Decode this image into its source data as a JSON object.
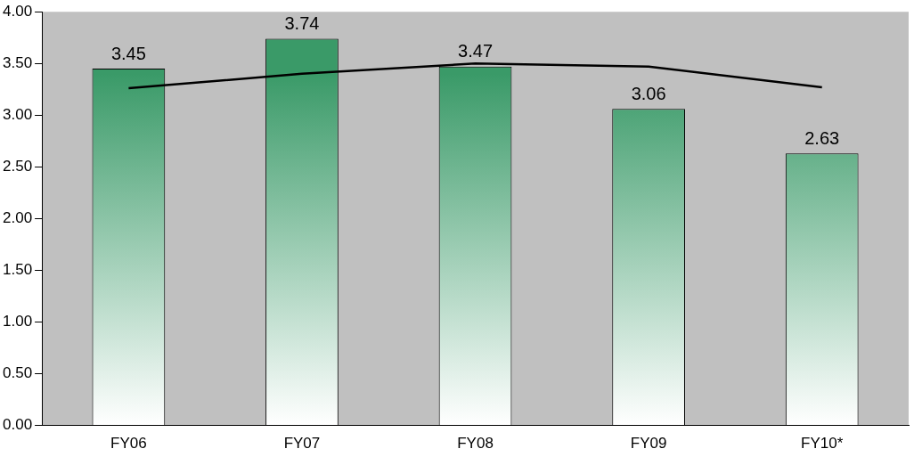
{
  "chart_data": {
    "type": "bar",
    "categories": [
      "FY06",
      "FY07",
      "FY08",
      "FY09",
      "FY10*"
    ],
    "series": [
      {
        "color": "#3a9a68",
        "values": [
          3.45,
          3.74,
          3.47,
          3.06,
          2.63
        ],
        "value_labels": [
          "3.45",
          "3.74",
          "3.47",
          "3.06",
          "2.63"
        ]
      },
      {
        "type": "line",
        "color": "#000000",
        "values": [
          3.26,
          3.4,
          3.5,
          3.47,
          3.27
        ]
      }
    ],
    "ylim": [
      0,
      4
    ],
    "yticks": [
      {
        "value": 0,
        "label": "0.00"
      },
      {
        "value": 0.5,
        "label": "0.50"
      },
      {
        "value": 1,
        "label": "1.00"
      },
      {
        "value": 1.5,
        "label": "1.50"
      },
      {
        "value": 2,
        "label": "2.00"
      },
      {
        "value": 2.5,
        "label": "2.50"
      },
      {
        "value": 3,
        "label": "3.00"
      },
      {
        "value": 3.5,
        "label": "3.50"
      },
      {
        "value": 4,
        "label": "4.00"
      }
    ],
    "grid": false,
    "legend": false,
    "marker": "none",
    "line_style": "solid"
  }
}
